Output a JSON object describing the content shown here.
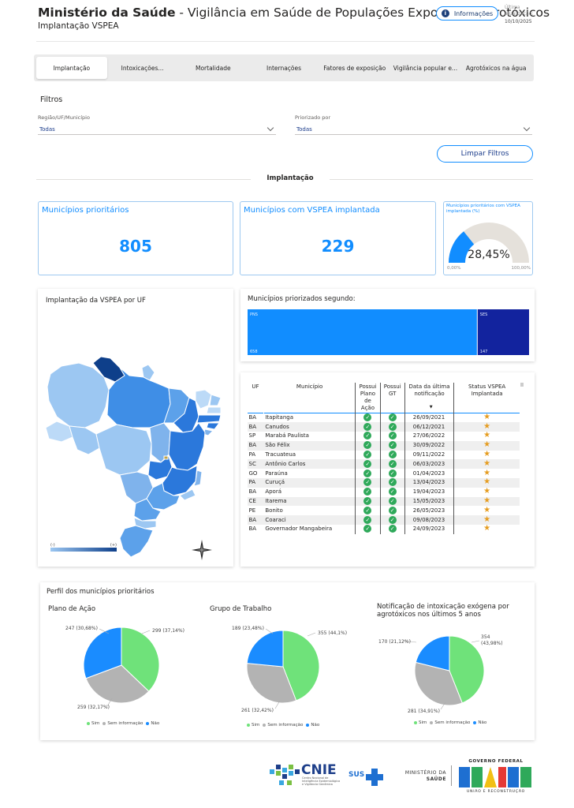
{
  "header": {
    "title_bold": "Ministério da Saúde",
    "title_rest": " - Vigilância em Saúde de Populações Expostas a Agrotóxicos",
    "subtitle": "Implantação VSPEA",
    "info_button": "Informações",
    "updated_label": "Última atualização:",
    "updated_date": "10/10/2025"
  },
  "tabs": [
    {
      "label": "Implantação",
      "active": true
    },
    {
      "label": "Intoxicações..."
    },
    {
      "label": "Mortalidade"
    },
    {
      "label": "Internações"
    },
    {
      "label": "Fatores de exposição"
    },
    {
      "label": "Vigilância popular e..."
    },
    {
      "label": "Agrotóxicos na água"
    }
  ],
  "filters": {
    "title": "Filtros",
    "region": {
      "label": "Região/UF/Município",
      "value": "Todas"
    },
    "priority": {
      "label": "Priorizado por",
      "value": "Todas"
    },
    "clear_button": "Limpar Filtros"
  },
  "section_title": "Implantação",
  "kpis": {
    "priority": {
      "title": "Municípios prioritários",
      "value": "805"
    },
    "implemented": {
      "title": "Municípios com VSPEA implantada",
      "value": "229"
    },
    "gauge": {
      "title": "Municípios prioritários com VSPEA implantada (%)",
      "value": "28,45%",
      "fraction": 0.2845,
      "min": "0,00%",
      "max": "100,00%"
    }
  },
  "map": {
    "title": "Implantação da VSPEA por UF",
    "legend_min": "(-)",
    "legend_max": "(+)"
  },
  "prioritized": {
    "title": "Municípios priorizados segundo:",
    "segments": [
      {
        "label": "PNS",
        "value": "658",
        "count": 658,
        "color": "#118dff"
      },
      {
        "label": "SES",
        "value": "147",
        "count": 147,
        "color": "#12239e"
      }
    ]
  },
  "table": {
    "headers": {
      "uf": "UF",
      "municipio": "Município",
      "plano": "Possui Plano de Ação",
      "gt": "Possui GT",
      "data": "Data da última notificação",
      "status": "Status VSPEA Implantada"
    },
    "rows": [
      {
        "uf": "BA",
        "municipio": "Itapitanga",
        "data": "26/09/2021"
      },
      {
        "uf": "BA",
        "municipio": "Canudos",
        "data": "06/12/2021"
      },
      {
        "uf": "SP",
        "municipio": "Marabá Paulista",
        "data": "27/06/2022"
      },
      {
        "uf": "BA",
        "municipio": "São Félix",
        "data": "30/09/2022"
      },
      {
        "uf": "PA",
        "municipio": "Tracuateua",
        "data": "09/11/2022"
      },
      {
        "uf": "SC",
        "municipio": "Antônio Carlos",
        "data": "06/03/2023"
      },
      {
        "uf": "GO",
        "municipio": "Paraúna",
        "data": "01/04/2023"
      },
      {
        "uf": "PA",
        "municipio": "Curuçá",
        "data": "13/04/2023"
      },
      {
        "uf": "BA",
        "municipio": "Aporá",
        "data": "19/04/2023"
      },
      {
        "uf": "CE",
        "municipio": "Itarema",
        "data": "15/05/2023"
      },
      {
        "uf": "PE",
        "municipio": "Bonito",
        "data": "26/05/2023"
      },
      {
        "uf": "BA",
        "municipio": "Coaraci",
        "data": "09/08/2023"
      },
      {
        "uf": "BA",
        "municipio": "Governador Mangabeira",
        "data": "24/09/2023"
      }
    ]
  },
  "profile": {
    "title": "Perfil dos municípios prioritários",
    "legend": [
      "Sim",
      "Sem informação",
      "Não"
    ],
    "colors": {
      "sim": "#6fe27a",
      "sem": "#b3b3b3",
      "nao": "#1a8cff"
    },
    "pies": [
      {
        "title": "Plano de Ação",
        "slices": [
          {
            "value": 299,
            "label": "299 (37,14%)"
          },
          {
            "value": 259,
            "label": "259 (32,17%)"
          },
          {
            "value": 247,
            "label": "247 (30,68%)"
          }
        ]
      },
      {
        "title": "Grupo de Trabalho",
        "slices": [
          {
            "value": 355,
            "label": "355 (44,1%)"
          },
          {
            "value": 261,
            "label": "261 (32,42%)"
          },
          {
            "value": 189,
            "label": "189 (23,48%)"
          }
        ]
      },
      {
        "title": "Notificação de intoxicação exógena por agrotóxicos nos últimos 5 anos",
        "slices": [
          {
            "value": 354,
            "label": "354 (43,98%)"
          },
          {
            "value": 281,
            "label": "281 (34,91%)"
          },
          {
            "value": 170,
            "label": "170 (21,12%)"
          }
        ]
      }
    ]
  },
  "footer": {
    "cnie": "CNIE",
    "cnie_sub": "Centro Nacional de Inteligência Epidemiológica e Vigilância Genômica",
    "sus": "SUS",
    "ms_line1": "MINISTÉRIO DA",
    "ms_line2": "SAÚDE",
    "gf_line1": "GOVERNO FEDERAL",
    "gf_line2": "UNIÃO E RECONSTRUÇÃO"
  }
}
